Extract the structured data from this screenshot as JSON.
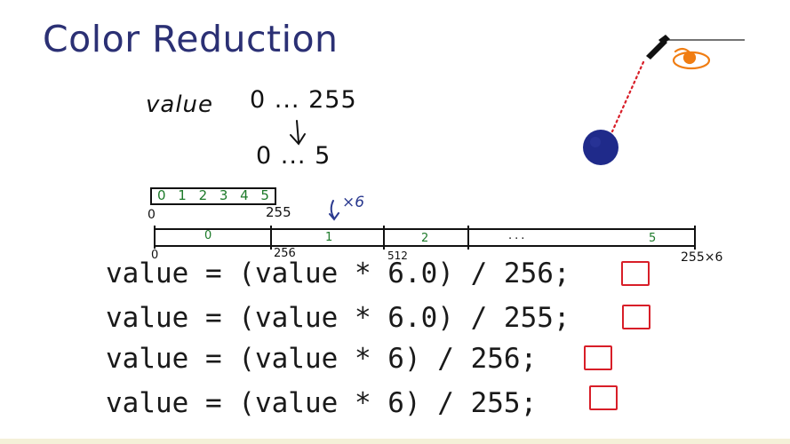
{
  "slide": {
    "title": "Color Reduction"
  },
  "notes": {
    "value_word": "value",
    "range_original": "0 ... 255",
    "range_reduced": "0 ... 5",
    "small_bar_labels": [
      "0",
      "1",
      "2",
      "3",
      "4",
      "5"
    ],
    "small_bar_start": "0",
    "small_bar_end": "255",
    "scale_note": "×6",
    "big_bar_segments": [
      "0",
      "1",
      "2",
      "...",
      "5"
    ],
    "big_bar_start": "0",
    "big_bar_ticks": [
      "256",
      "512"
    ],
    "big_bar_end": "255×6"
  },
  "options": [
    {
      "code": "value = (value * 6.0) / 256;",
      "checked": false
    },
    {
      "code": "value = (value * 6.0) / 255;",
      "checked": false
    },
    {
      "code": "value = (value * 6) / 256;",
      "checked": false
    },
    {
      "code": "value = (value * 6) / 255;",
      "checked": false
    }
  ],
  "colors": {
    "title": "#2b3074",
    "ink": "#111111",
    "green": "#1d7a2a",
    "blue_ink": "#2b3a8f",
    "checkbox_red": "#d81e28",
    "ball_blue": "#1f2a8a",
    "orange": "#f07d12",
    "dotted_red": "#d81e28"
  },
  "illustration": {
    "icons": [
      "dropper-icon",
      "ball-icon",
      "orange-swirl-icon"
    ]
  }
}
